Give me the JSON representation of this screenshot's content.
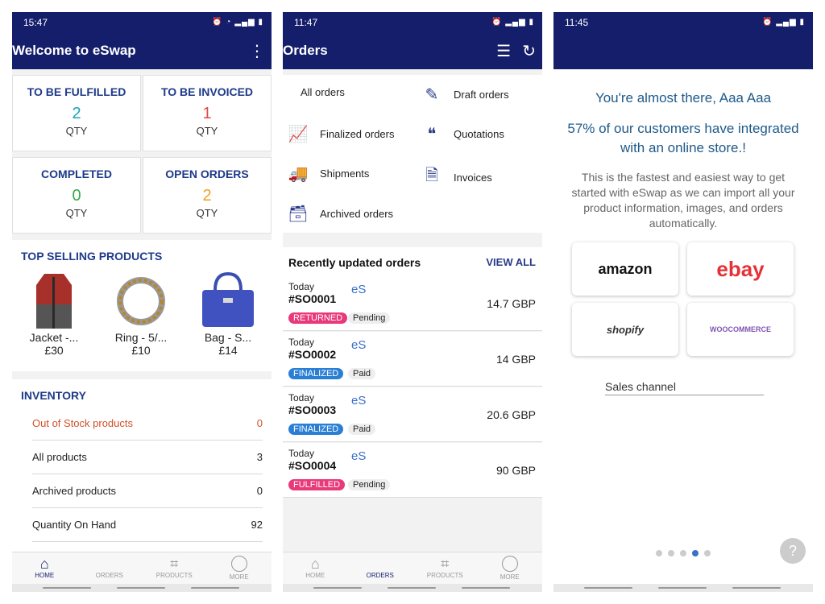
{
  "screens": {
    "home": {
      "status_time": "15:47",
      "title": "Welcome to eSwap",
      "cards": [
        {
          "label": "TO BE FULFILLED",
          "value": "2",
          "unit": "QTY",
          "color": "#1aa3b8"
        },
        {
          "label": "TO BE INVOICED",
          "value": "1",
          "unit": "QTY",
          "color": "#e04848"
        },
        {
          "label": "COMPLETED",
          "value": "0",
          "unit": "QTY",
          "color": "#3aa84a"
        },
        {
          "label": "OPEN ORDERS",
          "value": "2",
          "unit": "QTY",
          "color": "#f0a020"
        }
      ],
      "top_selling_title": "TOP SELLING PRODUCTS",
      "products": [
        {
          "name": "Jacket -...",
          "price": "£30"
        },
        {
          "name": "Ring - 5/...",
          "price": "£10"
        },
        {
          "name": "Bag - S...",
          "price": "£14"
        }
      ],
      "inventory_title": "INVENTORY",
      "inventory": [
        {
          "label": "Out of Stock products",
          "value": "0",
          "color": "#d0502a"
        },
        {
          "label": "All products",
          "value": "3"
        },
        {
          "label": "Archived products",
          "value": "0"
        },
        {
          "label": "Quantity On Hand",
          "value": "92"
        }
      ]
    },
    "orders": {
      "status_time": "11:47",
      "title": "Orders",
      "menu": [
        {
          "label": "All orders",
          "icon": "none"
        },
        {
          "label": "Draft orders",
          "icon": "edit-icon"
        },
        {
          "label": "Finalized orders",
          "icon": "chart-icon"
        },
        {
          "label": "Quotations",
          "icon": "quote-icon"
        },
        {
          "label": "Shipments",
          "icon": "truck-icon"
        },
        {
          "label": "Invoices",
          "icon": "document-icon"
        },
        {
          "label": "Archived orders",
          "icon": "archive-icon"
        }
      ],
      "recent_title": "Recently updated orders",
      "view_all": "VIEW ALL",
      "list": [
        {
          "day": "Today",
          "number": "#SO0001",
          "channel": "eS",
          "status": "RETURNED",
          "status_color": "#e83a7a",
          "payment": "Pending",
          "amount": "14.7 GBP"
        },
        {
          "day": "Today",
          "number": "#SO0002",
          "channel": "eS",
          "status": "FINALIZED",
          "status_color": "#2a7fd4",
          "payment": "Paid",
          "amount": "14 GBP"
        },
        {
          "day": "Today",
          "number": "#SO0003",
          "channel": "eS",
          "status": "FINALIZED",
          "status_color": "#2a7fd4",
          "payment": "Paid",
          "amount": "20.6 GBP"
        },
        {
          "day": "Today",
          "number": "#SO0004",
          "channel": "eS",
          "status": "FULFILLED",
          "status_color": "#e83a7a",
          "payment": "Pending",
          "amount": "90 GBP"
        }
      ]
    },
    "onboarding": {
      "status_time": "11:45",
      "heading": "You're almost there, Aaa Aaa",
      "subheading": "57% of our customers have integrated with an online store.!",
      "body": "This is the fastest and easiest way to get started with eSwap as we can import all your product information, images, and orders automatically.",
      "stores": [
        "amazon",
        "ebay",
        "shopify",
        "WOOCOMMERCE"
      ],
      "sales_channel_label": "Sales channel",
      "pager_active_index": 3,
      "help": "?"
    }
  },
  "nav": [
    "HOME",
    "ORDERS",
    "PRODUCTS",
    "MORE"
  ]
}
